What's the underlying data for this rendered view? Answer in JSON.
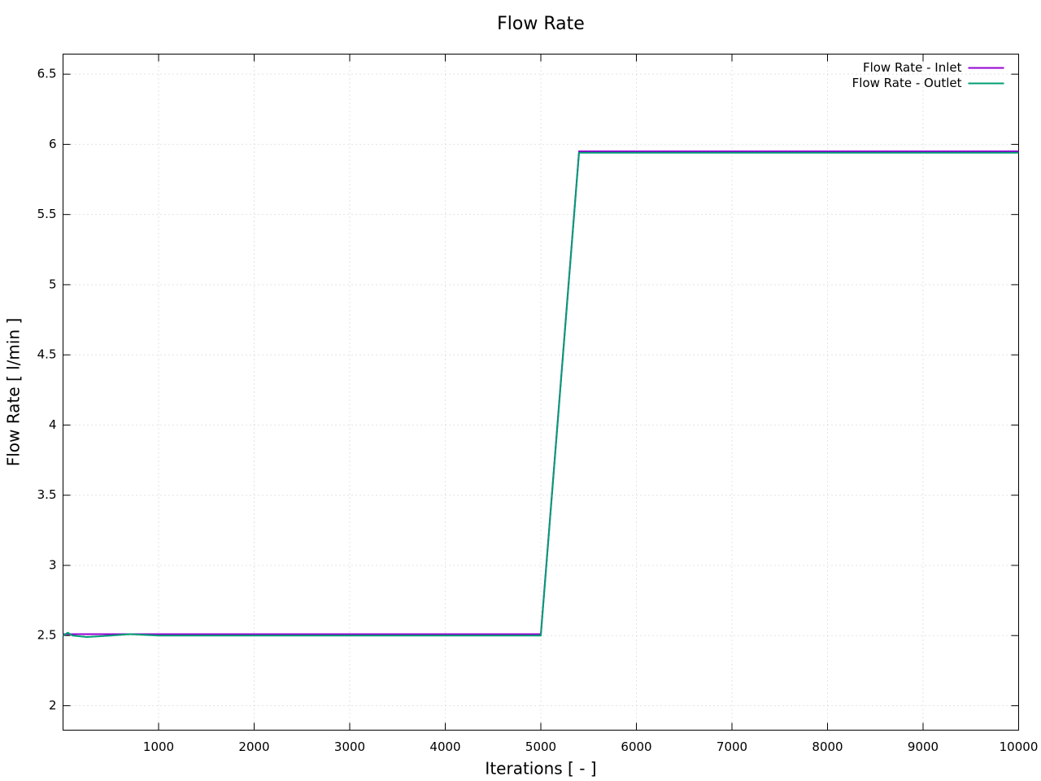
{
  "chart_data": {
    "type": "line",
    "title": "Flow Rate",
    "x_label": "Iterations [ - ]",
    "y_label": "Flow Rate [ l/min ]",
    "x": [
      0,
      50,
      100,
      250,
      500,
      700,
      1000,
      2000,
      3000,
      4000,
      5000,
      5400,
      6000,
      7000,
      8000,
      9000,
      10000
    ],
    "series": [
      {
        "name": "Flow Rate - Inlet",
        "color": "#9400d3",
        "values": [
          2.51,
          2.51,
          2.51,
          2.51,
          2.51,
          2.51,
          2.51,
          2.51,
          2.51,
          2.51,
          2.51,
          5.95,
          5.95,
          5.95,
          5.95,
          5.95,
          5.95
        ]
      },
      {
        "name": "Flow Rate - Outlet",
        "color": "#009e73",
        "values": [
          2.5,
          2.52,
          2.5,
          2.49,
          2.5,
          2.51,
          2.5,
          2.5,
          2.5,
          2.5,
          2.5,
          5.94,
          5.94,
          5.94,
          5.94,
          5.94,
          5.94
        ]
      }
    ],
    "xlim": [
      0,
      10000
    ],
    "xticks": [
      1000,
      2000,
      3000,
      4000,
      5000,
      6000,
      7000,
      8000,
      9000,
      10000
    ],
    "ylim": [
      1.826,
      6.643
    ],
    "yticks": [
      2,
      2.5,
      3,
      3.5,
      4,
      4.5,
      5,
      5.5,
      6,
      6.5
    ],
    "grid": true,
    "legend": "top-right"
  }
}
